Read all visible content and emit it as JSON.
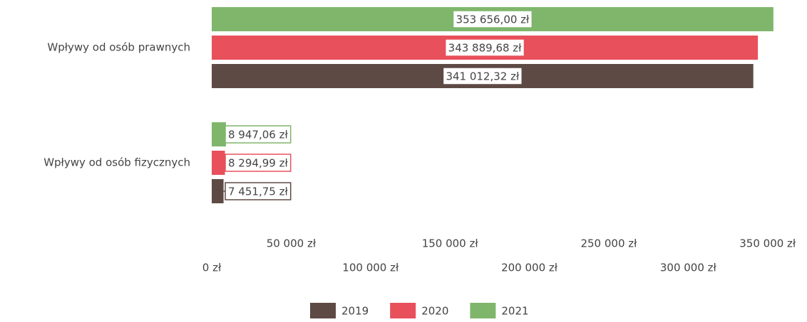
{
  "chart_data": {
    "type": "hbar",
    "categories": [
      "Wpływy od osób prawnych",
      "Wpływy od osób fizycznych"
    ],
    "series": [
      {
        "name": "2019",
        "color": "#5e4a44",
        "values": [
          341012.32,
          7451.75
        ],
        "value_labels": [
          "341 012,32 zł",
          "7 451,75 zł"
        ]
      },
      {
        "name": "2020",
        "color": "#e8505c",
        "values": [
          343889.68,
          8294.99
        ],
        "value_labels": [
          "343 889,68 zł",
          "8 294,99 zł"
        ]
      },
      {
        "name": "2021",
        "color": "#7fb66c",
        "values": [
          353656.0,
          8947.06
        ],
        "value_labels": [
          "353 656,00 zł",
          "8 947,06 zł"
        ]
      }
    ],
    "xlim": [
      0,
      360000
    ],
    "xticks": [
      {
        "value": 0,
        "label": "0 zł"
      },
      {
        "value": 50000,
        "label": "50 000 zł"
      },
      {
        "value": 100000,
        "label": "100 000 zł"
      },
      {
        "value": 150000,
        "label": "150 000 zł"
      },
      {
        "value": 200000,
        "label": "200 000 zł"
      },
      {
        "value": 250000,
        "label": "250 000 zł"
      },
      {
        "value": 300000,
        "label": "300 000 zł"
      },
      {
        "value": 350000,
        "label": "350 000 zł"
      }
    ],
    "legend": "bottom"
  }
}
